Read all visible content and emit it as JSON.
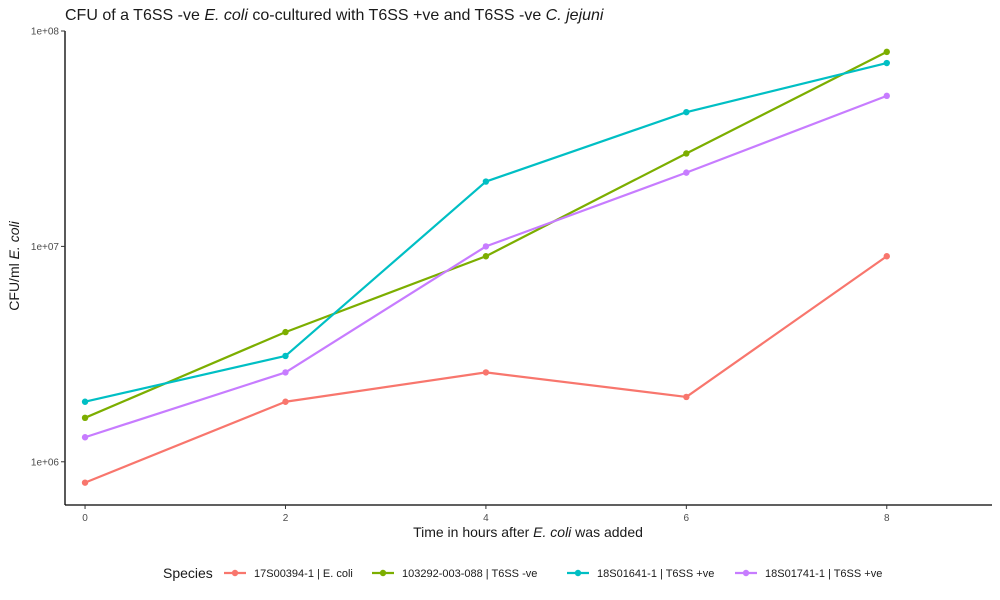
{
  "chart_data": {
    "type": "line",
    "title_parts": [
      {
        "text": "CFU of a T6SS -ve ",
        "italic": false
      },
      {
        "text": "E. coli",
        "italic": true
      },
      {
        "text": " co-cultured  with T6SS +ve and T6SS -ve ",
        "italic": false
      },
      {
        "text": "C. jejuni",
        "italic": true
      }
    ],
    "xlabel_parts": [
      {
        "text": "Time in hours after ",
        "italic": false
      },
      {
        "text": "E. coli",
        "italic": true
      },
      {
        "text": " was added",
        "italic": false
      }
    ],
    "ylabel_parts": [
      {
        "text": "CFU/ml ",
        "italic": false
      },
      {
        "text": "E. coli",
        "italic": true
      }
    ],
    "x_ticks": [
      0,
      2,
      4,
      6,
      8
    ],
    "x_tick_labels": [
      "0",
      "2",
      "4",
      "6",
      "8"
    ],
    "xlim": [
      -0.2,
      9.05
    ],
    "y_scale": "log10",
    "y_ticks": [
      1000000,
      10000000,
      100000000
    ],
    "y_tick_labels": [
      "1e+06",
      "1e+07",
      "1e+08"
    ],
    "ylim": [
      630000,
      100000000
    ],
    "grid": false,
    "legend_position": "bottom",
    "legend_title": "Species",
    "x": [
      0,
      2,
      4,
      6,
      8
    ],
    "series": [
      {
        "name": "17S00394-1  | E. coli",
        "color": "#F8766D",
        "values": [
          800000,
          1900000,
          2600000,
          2000000,
          9000000
        ]
      },
      {
        "name": "103292-003-088   | T6SS -ve",
        "color": "#7CAE00",
        "values": [
          1600000,
          4000000,
          9000000,
          27000000,
          80000000
        ]
      },
      {
        "name": "18S01641-1  | T6SS +ve",
        "color": "#00BFC4",
        "values": [
          1900000,
          3100000,
          20000000,
          42000000,
          71000000
        ]
      },
      {
        "name": "18S01741-1  | T6SS +ve",
        "color": "#C77CFF",
        "values": [
          1300000,
          2600000,
          10000000,
          22000000,
          50000000
        ]
      }
    ]
  }
}
